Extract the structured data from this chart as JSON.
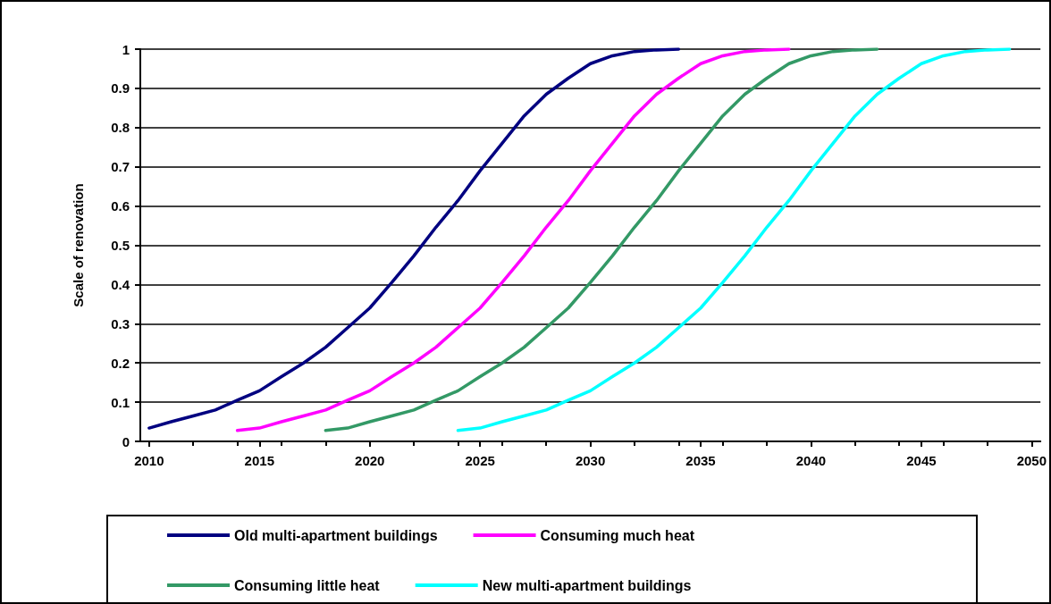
{
  "chart_data": {
    "type": "line",
    "ylabel": "Scale of renovation",
    "xlim": [
      2009.6,
      2050.4
    ],
    "xticks": [
      2010,
      2015,
      2020,
      2025,
      2030,
      2035,
      2040,
      2045,
      2050
    ],
    "ylim": [
      0,
      1
    ],
    "yticks": [
      0,
      0.1,
      0.2,
      0.3,
      0.4,
      0.5,
      0.6,
      0.7,
      0.8,
      0.9,
      1
    ],
    "grid": "y",
    "legend": "bottom",
    "marker": "none",
    "line_style": "solid",
    "series": [
      {
        "name": "Old multi-apartment buildings",
        "color": "#000080",
        "x": [
          2010,
          2011,
          2012,
          2013,
          2014,
          2015,
          2016,
          2017,
          2018,
          2019,
          2020,
          2021,
          2022,
          2023,
          2024,
          2025,
          2026,
          2027,
          2028,
          2029,
          2030,
          2031,
          2032,
          2033,
          2034
        ],
        "values": [
          0.034,
          0.05,
          0.065,
          0.08,
          0.105,
          0.129,
          0.165,
          0.2,
          0.24,
          0.29,
          0.34,
          0.405,
          0.473,
          0.546,
          0.614,
          0.69,
          0.76,
          0.83,
          0.885,
          0.926,
          0.963,
          0.983,
          0.994,
          0.998,
          1.0
        ]
      },
      {
        "name": "Consuming much heat",
        "color": "#ff00ff",
        "x": [
          2014,
          2015,
          2016,
          2017,
          2018,
          2019,
          2020,
          2021,
          2022,
          2023,
          2024,
          2025,
          2026,
          2027,
          2028,
          2029,
          2030,
          2031,
          2032,
          2033,
          2034,
          2035,
          2036,
          2037,
          2038,
          2039
        ],
        "values": [
          0.028,
          0.034,
          0.05,
          0.065,
          0.08,
          0.105,
          0.129,
          0.165,
          0.2,
          0.24,
          0.29,
          0.34,
          0.405,
          0.473,
          0.546,
          0.614,
          0.69,
          0.76,
          0.83,
          0.885,
          0.926,
          0.963,
          0.983,
          0.994,
          0.998,
          1.0
        ]
      },
      {
        "name": "Consuming little heat",
        "color": "#339966",
        "x": [
          2018,
          2019,
          2020,
          2021,
          2022,
          2023,
          2024,
          2025,
          2026,
          2027,
          2028,
          2029,
          2030,
          2031,
          2032,
          2033,
          2034,
          2035,
          2036,
          2037,
          2038,
          2039,
          2040,
          2041,
          2042,
          2043
        ],
        "values": [
          0.028,
          0.034,
          0.05,
          0.065,
          0.08,
          0.105,
          0.129,
          0.165,
          0.2,
          0.24,
          0.29,
          0.34,
          0.405,
          0.473,
          0.546,
          0.614,
          0.69,
          0.76,
          0.83,
          0.885,
          0.926,
          0.963,
          0.983,
          0.994,
          0.998,
          1.0
        ]
      },
      {
        "name": "New multi-apartment buildings",
        "color": "#00ffff",
        "x": [
          2024,
          2025,
          2026,
          2027,
          2028,
          2029,
          2030,
          2031,
          2032,
          2033,
          2034,
          2035,
          2036,
          2037,
          2038,
          2039,
          2040,
          2041,
          2042,
          2043,
          2044,
          2045,
          2046,
          2047,
          2048,
          2049
        ],
        "values": [
          0.028,
          0.034,
          0.05,
          0.065,
          0.08,
          0.105,
          0.129,
          0.165,
          0.2,
          0.24,
          0.29,
          0.34,
          0.405,
          0.473,
          0.546,
          0.614,
          0.69,
          0.76,
          0.83,
          0.885,
          0.926,
          0.963,
          0.983,
          0.994,
          0.998,
          1.0
        ]
      }
    ]
  }
}
